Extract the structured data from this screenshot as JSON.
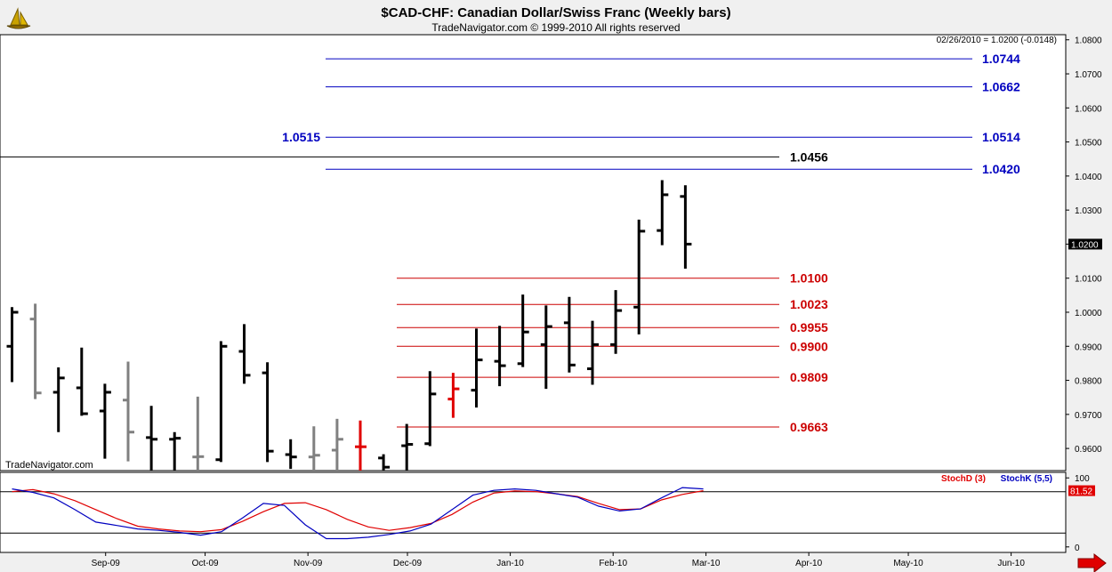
{
  "header": {
    "title": "$CAD-CHF:  Canadian Dollar/Swiss Franc  (Weekly bars)",
    "subtitle": "TradeNavigator.com © 1999-2010 All rights reserved",
    "last_info": "02/26/2010 = 1.0200 (-0.0148)",
    "watermark": "TradeNavigator.com"
  },
  "colors": {
    "up_bar": "#000000",
    "down_bar": "#808080",
    "highlight_bar": "#e00000",
    "resistance": "#0000c0",
    "support": "#cc0000",
    "high_line": "#000000",
    "stoch_d": "#e00000",
    "stoch_k": "#0000c0",
    "panel_bg": "#ffffff",
    "frame_bg": "#f0f0f0"
  },
  "chart_data": [
    {
      "type": "ohlc",
      "interval": "weekly",
      "ylim": [
        0.9535,
        1.0815
      ],
      "y_ticks": [
        "1.0800",
        "1.0700",
        "1.0600",
        "1.0500",
        "1.0400",
        "1.0300",
        "1.0200",
        "1.0100",
        "1.0000",
        "0.9900",
        "0.9800",
        "0.9700",
        "0.9600"
      ],
      "y_tick_values": [
        1.08,
        1.07,
        1.06,
        1.05,
        1.04,
        1.03,
        1.02,
        1.01,
        1.0,
        0.99,
        0.98,
        0.97,
        0.96
      ],
      "last_price_label": "1.0200",
      "last_price": 1.02,
      "x_labels": [
        "Sep-09",
        "Oct-09",
        "Nov-09",
        "Dec-09",
        "Jan-10",
        "Feb-10",
        "Mar-10",
        "Apr-10",
        "May-10",
        "Jun-10"
      ],
      "bars": [
        {
          "date": "2009-08-07",
          "open": 0.99,
          "high": 1.0015,
          "low": 0.9795,
          "close": 1.0,
          "color": "up"
        },
        {
          "date": "2009-08-14",
          "open": 0.998,
          "high": 1.0025,
          "low": 0.9745,
          "close": 0.9763,
          "color": "down"
        },
        {
          "date": "2009-08-21",
          "open": 0.9765,
          "high": 0.9838,
          "low": 0.9648,
          "close": 0.9807,
          "color": "up"
        },
        {
          "date": "2009-08-28",
          "open": 0.9778,
          "high": 0.9896,
          "low": 0.9696,
          "close": 0.9702,
          "color": "up"
        },
        {
          "date": "2009-09-04",
          "open": 0.971,
          "high": 0.979,
          "low": 0.957,
          "close": 0.9765,
          "color": "up"
        },
        {
          "date": "2009-09-11",
          "open": 0.9742,
          "high": 0.9855,
          "low": 0.9562,
          "close": 0.9648,
          "color": "down"
        },
        {
          "date": "2009-09-18",
          "open": 0.9632,
          "high": 0.9725,
          "low": 0.953,
          "close": 0.9627,
          "color": "up"
        },
        {
          "date": "2009-09-25",
          "open": 0.9627,
          "high": 0.9648,
          "low": 0.953,
          "close": 0.963,
          "color": "up"
        },
        {
          "date": "2009-10-02",
          "open": 0.9575,
          "high": 0.9752,
          "low": 0.953,
          "close": 0.9576,
          "color": "down"
        },
        {
          "date": "2009-10-09",
          "open": 0.9567,
          "high": 0.9915,
          "low": 0.956,
          "close": 0.99,
          "color": "up"
        },
        {
          "date": "2009-10-16",
          "open": 0.9885,
          "high": 0.9965,
          "low": 0.979,
          "close": 0.9815,
          "color": "up"
        },
        {
          "date": "2009-10-23",
          "open": 0.9822,
          "high": 0.9853,
          "low": 0.956,
          "close": 0.9592,
          "color": "up"
        },
        {
          "date": "2009-10-30",
          "open": 0.9582,
          "high": 0.9627,
          "low": 0.954,
          "close": 0.9575,
          "color": "up"
        },
        {
          "date": "2009-11-06",
          "open": 0.9575,
          "high": 0.9665,
          "low": 0.9535,
          "close": 0.958,
          "color": "down"
        },
        {
          "date": "2009-11-13",
          "open": 0.9595,
          "high": 0.9687,
          "low": 0.9535,
          "close": 0.9627,
          "color": "down"
        },
        {
          "date": "2009-11-20",
          "open": 0.9605,
          "high": 0.9682,
          "low": 0.9535,
          "close": 0.9605,
          "color": "highlight"
        },
        {
          "date": "2009-11-27",
          "open": 0.9572,
          "high": 0.9583,
          "low": 0.9535,
          "close": 0.9545,
          "color": "up"
        },
        {
          "date": "2009-12-04",
          "open": 0.9608,
          "high": 0.9672,
          "low": 0.9535,
          "close": 0.9612,
          "color": "up"
        },
        {
          "date": "2009-12-11",
          "open": 0.9614,
          "high": 0.9827,
          "low": 0.9607,
          "close": 0.976,
          "color": "up"
        },
        {
          "date": "2009-12-18",
          "open": 0.9745,
          "high": 0.9822,
          "low": 0.969,
          "close": 0.9775,
          "color": "highlight"
        },
        {
          "date": "2009-12-25",
          "open": 0.9771,
          "high": 0.9952,
          "low": 0.972,
          "close": 0.986,
          "color": "up"
        },
        {
          "date": "2010-01-01",
          "open": 0.9856,
          "high": 0.996,
          "low": 0.9783,
          "close": 0.9843,
          "color": "up"
        },
        {
          "date": "2010-01-08",
          "open": 0.9849,
          "high": 1.0052,
          "low": 0.9839,
          "close": 0.9942,
          "color": "up"
        },
        {
          "date": "2010-01-15",
          "open": 0.9905,
          "high": 1.002,
          "low": 0.9775,
          "close": 0.9958,
          "color": "up"
        },
        {
          "date": "2010-01-22",
          "open": 0.9969,
          "high": 1.0045,
          "low": 0.9823,
          "close": 0.9845,
          "color": "up"
        },
        {
          "date": "2010-01-29",
          "open": 0.9834,
          "high": 0.9975,
          "low": 0.9787,
          "close": 0.9905,
          "color": "up"
        },
        {
          "date": "2010-02-05",
          "open": 0.9905,
          "high": 1.0065,
          "low": 0.9878,
          "close": 1.0005,
          "color": "up"
        },
        {
          "date": "2010-02-12",
          "open": 1.0015,
          "high": 1.0272,
          "low": 0.9935,
          "close": 1.0238,
          "color": "up"
        },
        {
          "date": "2010-02-19",
          "open": 1.024,
          "high": 1.0388,
          "low": 1.0197,
          "close": 1.0345,
          "color": "up"
        },
        {
          "date": "2010-02-26",
          "open": 1.034,
          "high": 1.0373,
          "low": 1.0128,
          "close": 1.02,
          "color": "up"
        }
      ],
      "levels": [
        {
          "value": 1.0744,
          "label": "1.0744",
          "kind": "resistance"
        },
        {
          "value": 1.0662,
          "label": "1.0662",
          "kind": "resistance"
        },
        {
          "value": 1.0514,
          "label": "1.0514",
          "kind": "resistance",
          "left_label": "1.0515"
        },
        {
          "value": 1.0456,
          "label": "1.0456",
          "kind": "high"
        },
        {
          "value": 1.042,
          "label": "1.0420",
          "kind": "resistance"
        },
        {
          "value": 1.01,
          "label": "1.0100",
          "kind": "support"
        },
        {
          "value": 1.0023,
          "label": "1.0023",
          "kind": "support"
        },
        {
          "value": 0.9955,
          "label": "0.9955",
          "kind": "support"
        },
        {
          "value": 0.99,
          "label": "0.9900",
          "kind": "support"
        },
        {
          "value": 0.9809,
          "label": "0.9809",
          "kind": "support"
        },
        {
          "value": 0.9663,
          "label": "0.9663",
          "kind": "support"
        }
      ]
    },
    {
      "type": "line",
      "name": "stochastic",
      "ylim": [
        -8,
        108
      ],
      "y_ticks": [
        "100",
        "0"
      ],
      "y_tick_values": [
        100,
        0
      ],
      "ref_lines": [
        80,
        20
      ],
      "last_value_labels": {
        "d": "81.52"
      },
      "series": [
        {
          "name": "StochD (3)",
          "key": "d",
          "values": [
            80,
            83,
            77,
            67,
            54,
            41,
            30,
            26,
            23,
            22,
            25,
            37,
            51,
            63,
            64,
            54,
            40,
            29,
            24,
            28,
            34,
            47,
            65,
            78,
            81,
            80,
            77,
            73,
            63,
            54,
            55,
            68,
            76,
            81.5
          ]
        },
        {
          "name": "StochK (5,5)",
          "key": "k",
          "values": [
            84,
            79,
            71,
            54,
            36,
            31,
            26,
            24,
            21,
            17,
            22,
            42,
            63,
            60,
            32,
            12,
            12,
            14,
            18,
            23,
            33,
            54,
            75,
            82,
            84,
            82,
            77,
            72,
            59,
            52,
            55,
            71,
            86,
            84
          ]
        }
      ],
      "x_labels": [
        "Sep-09",
        "Oct-09",
        "Nov-09",
        "Dec-09",
        "Jan-10",
        "Feb-10",
        "Mar-10",
        "Apr-10",
        "May-10",
        "Jun-10"
      ]
    }
  ]
}
